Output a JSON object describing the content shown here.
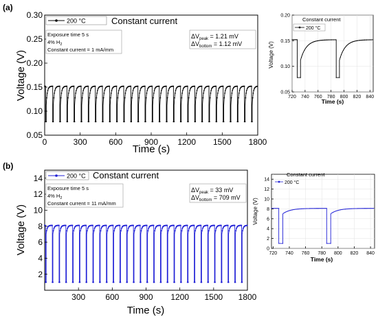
{
  "chart_data": [
    {
      "id": "a_main",
      "panel_label": "(a)",
      "type": "line",
      "title": "Constant current",
      "xlabel": "Time (s)",
      "ylabel": "Voltage (V)",
      "xlim": [
        0,
        1800
      ],
      "ylim": [
        0.05,
        0.3
      ],
      "xticks": [
        0,
        300,
        600,
        900,
        1200,
        1500,
        1800
      ],
      "yticks": [
        "0.05",
        "0.10",
        "0.15",
        "0.20",
        "0.25",
        "0.30"
      ],
      "legend": "200 °C",
      "color": "#000000",
      "pulse": {
        "period": 60,
        "first_start": 8,
        "peak": 0.152,
        "bottom": 0.078,
        "drop": 0.112
      },
      "annotations": [
        "Exposure time 5 s",
        "4% H",
        "2",
        "Constant current = 1 mA/mm"
      ],
      "delta": {
        "peak_label": "ΔV",
        "peak_sub": "peak",
        "peak_val": "= 1.21 mV",
        "bottom_label": "ΔV",
        "bottom_sub": "bottom",
        "bottom_val": "= 1.12 mV"
      }
    },
    {
      "id": "a_inset",
      "type": "line",
      "title": "Constant current",
      "xlabel": "Time (s)",
      "ylabel": "Voltage (V)",
      "xlim": [
        720,
        845
      ],
      "ylim": [
        0.05,
        0.2
      ],
      "xticks": [
        720,
        740,
        760,
        780,
        800,
        820,
        840
      ],
      "yticks": [
        "0.05",
        "0.10",
        "0.15",
        "0.20"
      ],
      "legend": "200 °C",
      "color": "#000000",
      "pulse": {
        "starts": [
          728,
          788
        ],
        "peak": 0.152,
        "bottom": 0.078,
        "drop": 0.112
      }
    },
    {
      "id": "b_main",
      "panel_label": "(b)",
      "type": "line",
      "title": "Constant current",
      "xlabel": "Time (s)",
      "ylabel": "Voltage (V)",
      "xlim": [
        0,
        1800
      ],
      "ylim": [
        0,
        15
      ],
      "xticks": [
        300,
        600,
        900,
        1200,
        1500,
        1800
      ],
      "yticks": [
        "2",
        "4",
        "6",
        "8",
        "10",
        "12",
        "14"
      ],
      "legend": "200 °C",
      "color": "#1f1fd6",
      "pulse": {
        "period": 60,
        "first_start": 8,
        "peak": 8.1,
        "bottom": 1.0,
        "drop": 7.0
      },
      "annotations": [
        "Exposure time 5 s",
        "4% H",
        "2",
        "Constant current  = 11 mA/mm"
      ],
      "delta": {
        "peak_label": "ΔV",
        "peak_sub": "peak",
        "peak_val": "= 33 mV",
        "bottom_label": "ΔV",
        "bottom_sub": "bottom",
        "bottom_val": "= 709 mV"
      }
    },
    {
      "id": "b_inset",
      "type": "line",
      "title": "Constant current",
      "xlabel": "Time (s)",
      "ylabel": "Voltage (V)",
      "xlim": [
        718,
        845
      ],
      "ylim": [
        0,
        15
      ],
      "xticks": [
        720,
        740,
        760,
        780,
        800,
        820,
        840
      ],
      "yticks": [
        "0",
        "2",
        "4",
        "6",
        "8",
        "10",
        "12",
        "14"
      ],
      "legend": "200 °C",
      "color": "#1f1fd6",
      "pulse": {
        "starts": [
          727,
          786
        ],
        "peak": 8.1,
        "bottom": 1.0,
        "drop": 7.0
      }
    }
  ]
}
